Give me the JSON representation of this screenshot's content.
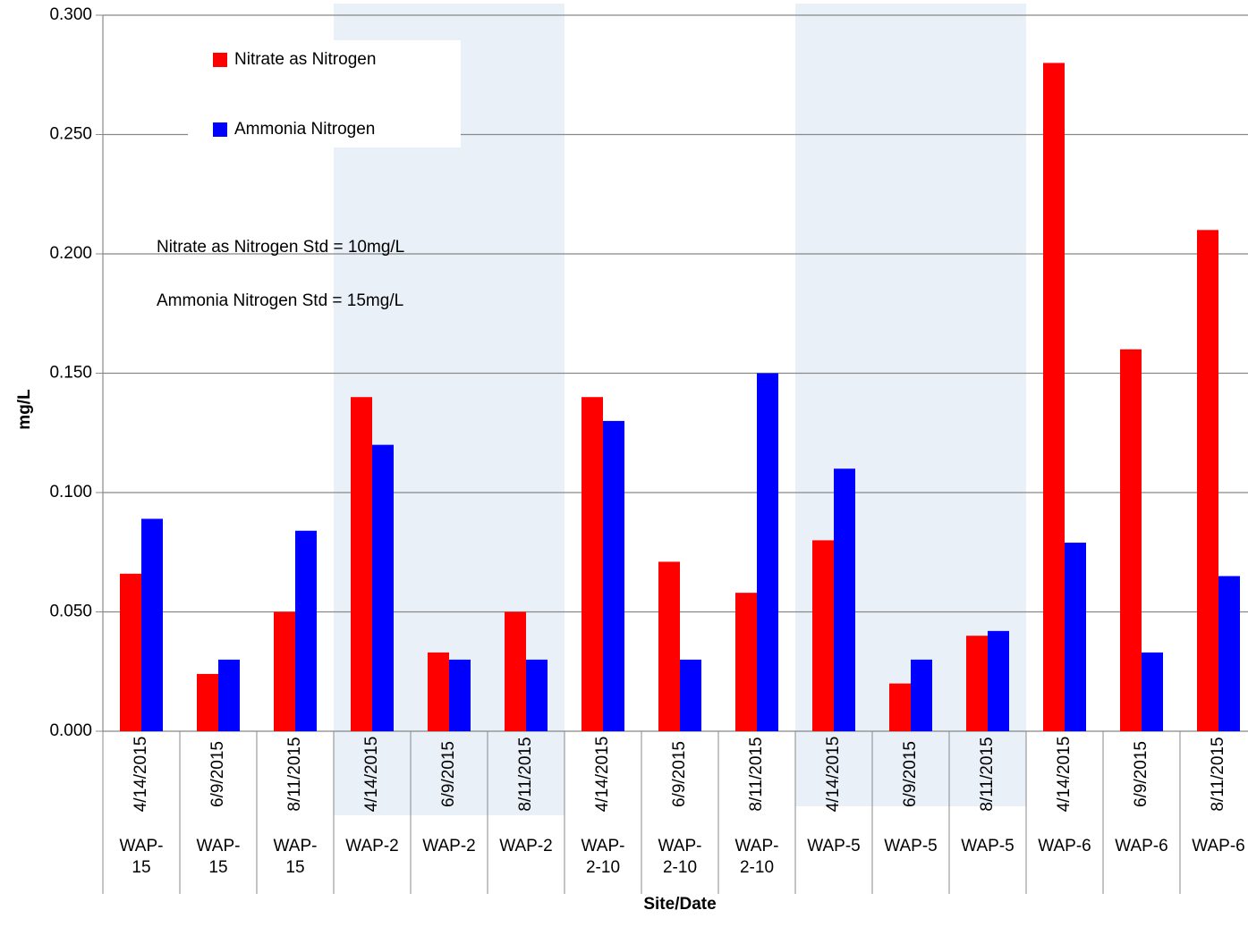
{
  "chart_data": {
    "type": "bar",
    "x_label": "Site/Date",
    "y_label": "mg/L",
    "categories": [
      "4/14/2015",
      "6/9/2015",
      "8/11/2015",
      "4/14/2015",
      "6/9/2015",
      "8/11/2015",
      "4/14/2015",
      "6/9/2015",
      "8/11/2015",
      "4/14/2015",
      "6/9/2015",
      "8/11/2015",
      "4/14/2015",
      "6/9/2015",
      "8/11/2015"
    ],
    "sites": [
      "WAP-15",
      "WAP-15",
      "WAP-15",
      "WAP-2",
      "WAP-2",
      "WAP-2",
      "WAP-2-10",
      "WAP-2-10",
      "WAP-2-10",
      "WAP-5",
      "WAP-5",
      "WAP-5",
      "WAP-6",
      "WAP-6",
      "WAP-6"
    ],
    "series": [
      {
        "name": "Nitrate as Nitrogen",
        "color": "#ff0000",
        "values": [
          0.066,
          0.024,
          0.05,
          0.14,
          0.033,
          0.05,
          0.14,
          0.071,
          0.058,
          0.08,
          0.02,
          0.04,
          0.28,
          0.16,
          0.21
        ]
      },
      {
        "name": "Ammonia Nitrogen",
        "color": "#0000ff",
        "values": [
          0.089,
          0.03,
          0.084,
          0.12,
          0.03,
          0.03,
          0.13,
          0.03,
          0.15,
          0.11,
          0.03,
          0.042,
          0.079,
          0.033,
          0.065
        ]
      }
    ],
    "annotations": [
      "Nitrate as Nitrogen Std = 10mg/L",
      "Ammonia Nitrogen Std = 15mg/L"
    ],
    "ylim": [
      0,
      0.3
    ],
    "yticks": [
      {
        "value": 0,
        "label": "0.000"
      },
      {
        "value": 0.05,
        "label": "0.050"
      },
      {
        "value": 0.1,
        "label": "0.100"
      },
      {
        "value": 0.15,
        "label": "0.150"
      },
      {
        "value": 0.2,
        "label": "0.200"
      },
      {
        "value": 0.25,
        "label": "0.250"
      },
      {
        "value": 0.3,
        "label": "0.300"
      }
    ],
    "grid": true
  }
}
